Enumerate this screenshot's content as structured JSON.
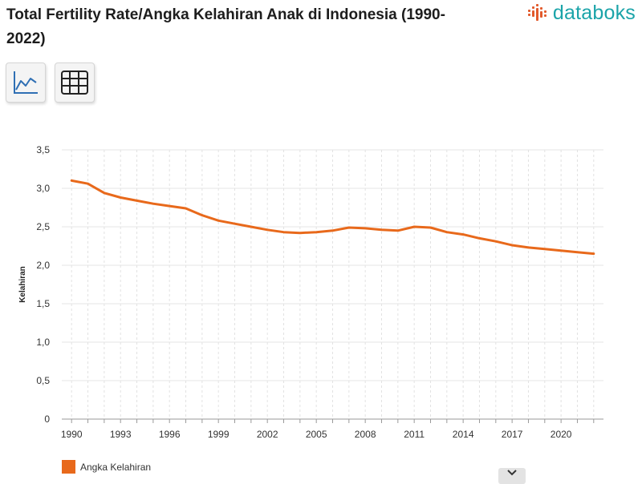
{
  "header": {
    "title": "Total Fertility Rate/Angka Kelahiran Anak di Indonesia (1990-2022)",
    "brand": "databoks"
  },
  "toolbar": {
    "line_view_icon": "line-chart-icon",
    "table_view_icon": "table-grid-icon"
  },
  "colors": {
    "series": "#e8691b",
    "brand": "#1ba4a9",
    "brand_dots": "#e25a2c"
  },
  "chart_data": {
    "type": "line",
    "title": "",
    "xlabel": "",
    "ylabel": "Kelahiran",
    "x": [
      1990,
      1991,
      1992,
      1993,
      1994,
      1995,
      1996,
      1997,
      1998,
      1999,
      2000,
      2001,
      2002,
      2003,
      2004,
      2005,
      2006,
      2007,
      2008,
      2009,
      2010,
      2011,
      2012,
      2013,
      2014,
      2015,
      2016,
      2017,
      2018,
      2019,
      2020,
      2021,
      2022
    ],
    "series": [
      {
        "name": "Angka Kelahiran",
        "values": [
          3.1,
          3.06,
          2.94,
          2.88,
          2.84,
          2.8,
          2.77,
          2.74,
          2.65,
          2.58,
          2.54,
          2.5,
          2.46,
          2.43,
          2.42,
          2.43,
          2.45,
          2.49,
          2.48,
          2.46,
          2.45,
          2.5,
          2.49,
          2.43,
          2.4,
          2.35,
          2.31,
          2.26,
          2.23,
          2.21,
          2.19,
          2.17,
          2.15
        ]
      }
    ],
    "x_ticks": [
      "1990",
      "1993",
      "1996",
      "1999",
      "2002",
      "2005",
      "2008",
      "2011",
      "2014",
      "2017",
      "2020"
    ],
    "y_ticks": [
      "0",
      "0,5",
      "1,0",
      "1,5",
      "2,0",
      "2,5",
      "3,0",
      "3,5"
    ],
    "ylim": [
      0,
      3.5
    ],
    "grid": true,
    "legend": "bottom-left"
  },
  "controls": {
    "collapse_icon": "chevron-down-icon"
  }
}
